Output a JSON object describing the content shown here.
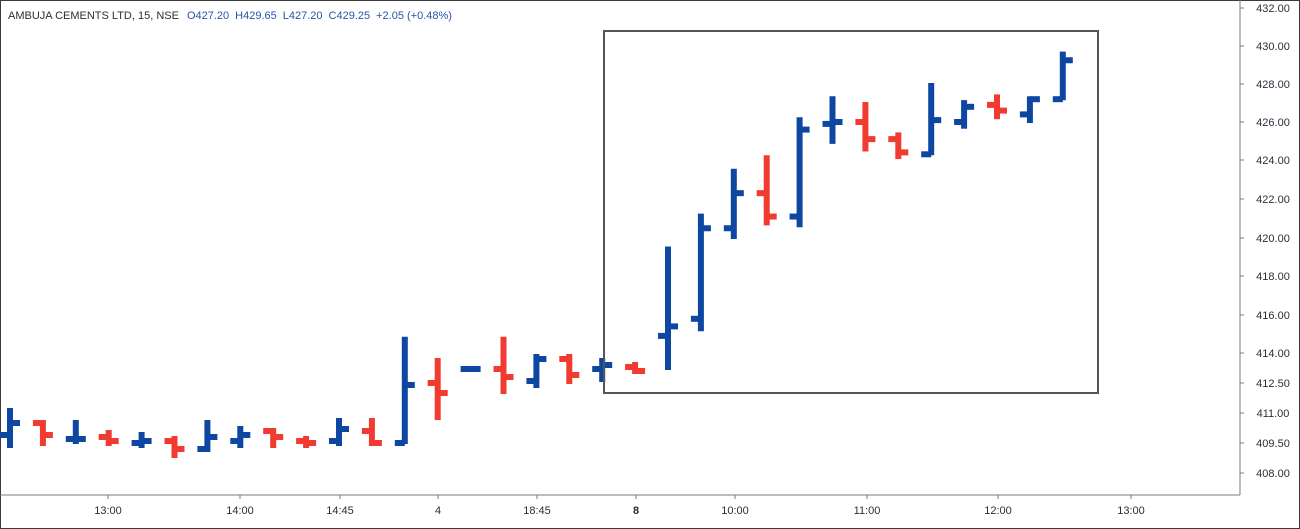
{
  "legend": {
    "symbol": "AMBUJA CEMENTS LTD, 15, NSE",
    "open": "O427.20",
    "high": "H429.65",
    "low": "L427.20",
    "close": "C429.25",
    "change": "+2.05 (+0.48%)"
  },
  "colors": {
    "up": "#0d47a1",
    "down": "#f23b30",
    "box": "#555555",
    "axis": "#787b86"
  },
  "chart_data": {
    "type": "ohlc",
    "title": "AMBUJA CEMENTS LTD, 15, NSE",
    "y_axis_ticks": [
      "432.00",
      "430.00",
      "428.00",
      "426.00",
      "424.00",
      "422.00",
      "420.00",
      "418.00",
      "416.00",
      "414.00",
      "412.50",
      "411.00",
      "409.50",
      "408.00"
    ],
    "x_axis_ticks": [
      {
        "label": "13:00",
        "bold": false
      },
      {
        "label": "14:00",
        "bold": false
      },
      {
        "label": "14:45",
        "bold": false
      },
      {
        "label": "4",
        "bold": false
      },
      {
        "label": "18:45",
        "bold": false
      },
      {
        "label": "8",
        "bold": true
      },
      {
        "label": "10:00",
        "bold": false
      },
      {
        "label": "11:00",
        "bold": false
      },
      {
        "label": "12:00",
        "bold": false
      },
      {
        "label": "13:00",
        "bold": false
      }
    ],
    "candles": [
      {
        "o": 409.9,
        "h": 411.2,
        "l": 409.3,
        "c": 410.5
      },
      {
        "o": 410.5,
        "h": 410.6,
        "l": 409.4,
        "c": 409.9
      },
      {
        "o": 409.7,
        "h": 410.6,
        "l": 409.5,
        "c": 409.7
      },
      {
        "o": 409.8,
        "h": 410.1,
        "l": 409.4,
        "c": 409.6
      },
      {
        "o": 409.5,
        "h": 410.0,
        "l": 409.3,
        "c": 409.6
      },
      {
        "o": 409.6,
        "h": 409.8,
        "l": 408.8,
        "c": 409.2
      },
      {
        "o": 409.2,
        "h": 410.6,
        "l": 409.1,
        "c": 409.8
      },
      {
        "o": 409.6,
        "h": 410.3,
        "l": 409.3,
        "c": 409.9
      },
      {
        "o": 410.1,
        "h": 410.2,
        "l": 409.3,
        "c": 409.8
      },
      {
        "o": 409.6,
        "h": 409.8,
        "l": 409.3,
        "c": 409.5
      },
      {
        "o": 409.6,
        "h": 410.7,
        "l": 409.4,
        "c": 410.2
      },
      {
        "o": 410.1,
        "h": 410.7,
        "l": 409.4,
        "c": 409.5
      },
      {
        "o": 409.5,
        "h": 414.8,
        "l": 409.5,
        "c": 412.4
      },
      {
        "o": 412.5,
        "h": 413.7,
        "l": 410.7,
        "c": 412.0
      },
      {
        "o": 413.2,
        "h": 413.2,
        "l": 413.2,
        "c": 413.2
      },
      {
        "o": 413.2,
        "h": 414.8,
        "l": 412.0,
        "c": 412.8
      },
      {
        "o": 412.6,
        "h": 413.9,
        "l": 412.3,
        "c": 413.7
      },
      {
        "o": 413.7,
        "h": 413.9,
        "l": 412.5,
        "c": 412.9
      },
      {
        "o": 413.2,
        "h": 413.7,
        "l": 412.6,
        "c": 413.4
      },
      {
        "o": 413.3,
        "h": 413.5,
        "l": 413.0,
        "c": 413.1
      },
      {
        "o": 414.9,
        "h": 419.5,
        "l": 413.2,
        "c": 415.4
      },
      {
        "o": 415.8,
        "h": 421.2,
        "l": 415.2,
        "c": 420.5
      },
      {
        "o": 420.5,
        "h": 423.5,
        "l": 420.0,
        "c": 422.3
      },
      {
        "o": 422.3,
        "h": 424.2,
        "l": 420.7,
        "c": 421.1
      },
      {
        "o": 421.1,
        "h": 426.2,
        "l": 420.6,
        "c": 425.6
      },
      {
        "o": 425.9,
        "h": 427.3,
        "l": 424.9,
        "c": 426.0
      },
      {
        "o": 426.0,
        "h": 427.0,
        "l": 424.5,
        "c": 425.1
      },
      {
        "o": 425.1,
        "h": 425.4,
        "l": 424.1,
        "c": 424.4
      },
      {
        "o": 424.3,
        "h": 428.0,
        "l": 424.3,
        "c": 426.1
      },
      {
        "o": 426.0,
        "h": 427.1,
        "l": 425.7,
        "c": 426.8
      },
      {
        "o": 426.9,
        "h": 427.4,
        "l": 426.2,
        "c": 426.6
      },
      {
        "o": 426.4,
        "h": 427.3,
        "l": 426.0,
        "c": 427.2
      },
      {
        "o": 427.2,
        "h": 429.65,
        "l": 427.2,
        "c": 429.25
      }
    ]
  }
}
